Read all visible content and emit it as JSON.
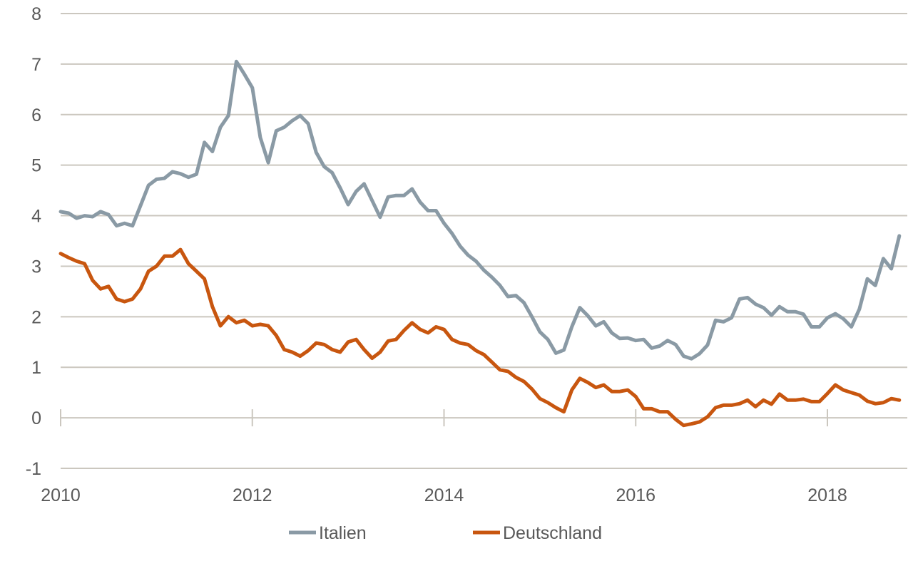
{
  "chart_data": {
    "type": "line",
    "title": "",
    "xlabel": "",
    "ylabel": "",
    "x_start": "2010-01",
    "x_frequency": "monthly",
    "x_ticks": [
      "2010",
      "2012",
      "2014",
      "2016",
      "2018"
    ],
    "y_ticks": [
      "-1",
      "0",
      "1",
      "2",
      "3",
      "4",
      "5",
      "6",
      "7",
      "8"
    ],
    "ylim": [
      -1,
      8
    ],
    "xlim": [
      "2010-01",
      "2018-10"
    ],
    "grid": "horizontal",
    "legend_placement": "bottom",
    "series": [
      {
        "name": "Italien",
        "color": "#8a9aa5",
        "values": [
          4.08,
          4.05,
          3.95,
          4.0,
          3.98,
          4.08,
          4.02,
          3.8,
          3.85,
          3.8,
          4.2,
          4.6,
          4.72,
          4.74,
          4.87,
          4.83,
          4.76,
          4.82,
          5.45,
          5.27,
          5.75,
          5.98,
          7.05,
          6.8,
          6.53,
          5.55,
          5.05,
          5.68,
          5.75,
          5.88,
          5.98,
          5.82,
          5.25,
          4.97,
          4.85,
          4.55,
          4.22,
          4.48,
          4.63,
          4.3,
          3.97,
          4.37,
          4.4,
          4.4,
          4.53,
          4.27,
          4.1,
          4.1,
          3.85,
          3.65,
          3.4,
          3.22,
          3.1,
          2.92,
          2.78,
          2.62,
          2.4,
          2.42,
          2.28,
          2.0,
          1.7,
          1.55,
          1.28,
          1.34,
          1.8,
          2.18,
          2.02,
          1.82,
          1.9,
          1.68,
          1.57,
          1.58,
          1.53,
          1.55,
          1.38,
          1.42,
          1.53,
          1.45,
          1.22,
          1.17,
          1.27,
          1.44,
          1.93,
          1.9,
          1.98,
          2.35,
          2.38,
          2.25,
          2.18,
          2.03,
          2.2,
          2.1,
          2.1,
          2.05,
          1.8,
          1.8,
          1.98,
          2.06,
          1.96,
          1.8,
          2.15,
          2.75,
          2.62,
          3.15,
          2.95,
          3.6
        ]
      },
      {
        "name": "Deutschland",
        "color": "#c8560f",
        "values": [
          3.25,
          3.17,
          3.1,
          3.05,
          2.72,
          2.55,
          2.6,
          2.35,
          2.3,
          2.35,
          2.55,
          2.9,
          3.0,
          3.2,
          3.2,
          3.33,
          3.05,
          2.9,
          2.75,
          2.2,
          1.82,
          2.0,
          1.88,
          1.93,
          1.82,
          1.85,
          1.82,
          1.63,
          1.35,
          1.3,
          1.22,
          1.33,
          1.48,
          1.45,
          1.35,
          1.3,
          1.5,
          1.55,
          1.35,
          1.18,
          1.3,
          1.52,
          1.55,
          1.73,
          1.88,
          1.75,
          1.68,
          1.8,
          1.75,
          1.55,
          1.48,
          1.45,
          1.33,
          1.25,
          1.1,
          0.95,
          0.92,
          0.8,
          0.72,
          0.57,
          0.38,
          0.3,
          0.2,
          0.12,
          0.55,
          0.78,
          0.7,
          0.6,
          0.65,
          0.52,
          0.52,
          0.55,
          0.42,
          0.18,
          0.18,
          0.12,
          0.12,
          -0.03,
          -0.15,
          -0.12,
          -0.08,
          0.02,
          0.2,
          0.25,
          0.25,
          0.28,
          0.35,
          0.22,
          0.35,
          0.27,
          0.47,
          0.35,
          0.35,
          0.37,
          0.32,
          0.32,
          0.48,
          0.65,
          0.55,
          0.5,
          0.45,
          0.33,
          0.28,
          0.3,
          0.38,
          0.35
        ]
      }
    ],
    "gridline_color": "#cbc7bf"
  }
}
